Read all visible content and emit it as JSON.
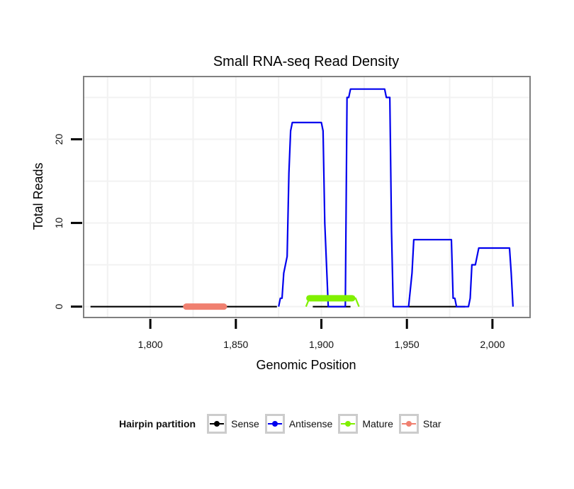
{
  "chart_data": {
    "type": "line",
    "title": "Small RNA-seq Read Density",
    "xlabel": "Genomic Position",
    "ylabel": "Total Reads",
    "xlim": [
      1761,
      2022
    ],
    "ylim": [
      -1.3,
      27.5
    ],
    "x_ticks": [
      1800,
      1850,
      1900,
      1950,
      2000
    ],
    "x_tick_labels": [
      "1,800",
      "1,850",
      "1,900",
      "1,950",
      "2,000"
    ],
    "y_ticks": [
      0,
      10,
      20
    ],
    "y_tick_labels": [
      "0",
      "10",
      "20"
    ],
    "grid": true,
    "legend_position": "bottom",
    "legend_title": "Hairpin partition",
    "series": [
      {
        "name": "Sense",
        "color": "#000000",
        "x": [
          1765,
          1874,
          1876,
          1893,
          1895,
          1917,
          1919,
          1949,
          1951,
          1984,
          1986,
          2013
        ],
        "y": [
          0,
          0,
          null,
          null,
          0,
          0,
          null,
          null,
          0,
          0,
          null,
          null
        ]
      },
      {
        "name": "Antisense",
        "color": "#0000ee",
        "x": [
          1875,
          1876,
          1877,
          1878,
          1880,
          1881,
          1882,
          1883,
          1884,
          1885,
          1900,
          1901,
          1902,
          1904,
          1905,
          1906,
          1912,
          1914,
          1915,
          1916,
          1917,
          1918,
          1919,
          1937,
          1938,
          1939,
          1940,
          1941,
          1942,
          1943,
          1944,
          1951,
          1953,
          1954,
          1955,
          1976,
          1977,
          1978,
          1979,
          1980,
          1985,
          1986,
          1987,
          1988,
          1989,
          1990,
          1991,
          1992,
          2009,
          2010,
          2011,
          2012
        ],
        "y": [
          0,
          1,
          1,
          4,
          6,
          16,
          21,
          22,
          22,
          22,
          22,
          21,
          10,
          0,
          0,
          0,
          0,
          0,
          25,
          25,
          26,
          26,
          26,
          26,
          25,
          25,
          25,
          9,
          0,
          0,
          0,
          0,
          4,
          8,
          8,
          8,
          1,
          1,
          0,
          0,
          0,
          0,
          1,
          5,
          5,
          5,
          6,
          7,
          7,
          7,
          4,
          0
        ]
      },
      {
        "name": "Mature",
        "color": "#80f000",
        "x": [
          1891,
          1893,
          1895,
          1918,
          1920,
          1922
        ],
        "y": [
          0,
          1,
          1,
          1,
          1,
          0
        ],
        "thick_x": [
          1893,
          1918
        ],
        "thick_y": 1
      },
      {
        "name": "Star",
        "color": "#f08070",
        "x": [
          1821,
          1843
        ],
        "y": [
          0,
          0
        ],
        "thick": true
      }
    ]
  }
}
